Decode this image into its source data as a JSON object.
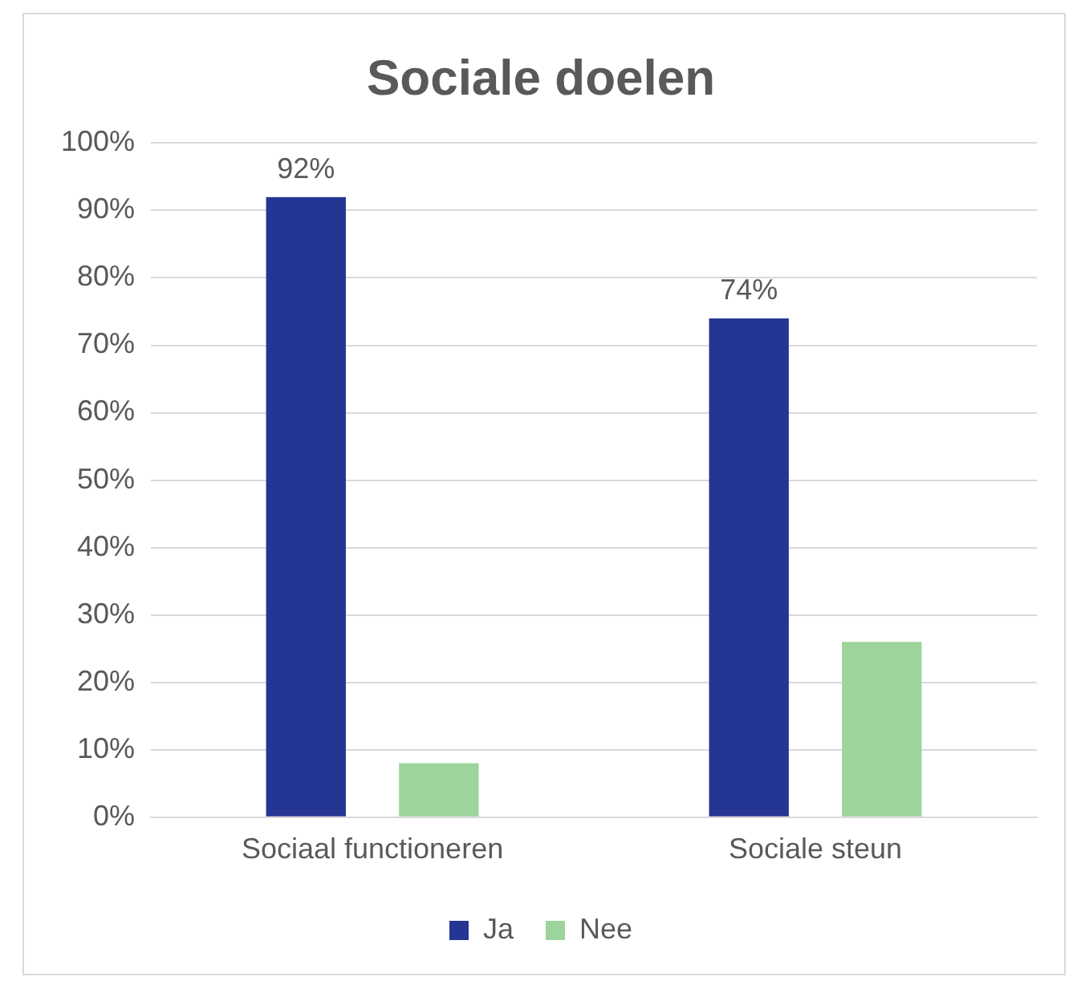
{
  "chart_data": {
    "type": "bar",
    "title": "Sociale doelen",
    "categories": [
      "Sociaal functioneren",
      "Sociale steun"
    ],
    "series": [
      {
        "name": "Ja",
        "color": "#253593",
        "values": [
          92,
          74
        ],
        "value_labels": [
          "92%",
          "74%"
        ]
      },
      {
        "name": "Nee",
        "color": "#9dd49b",
        "values": [
          8,
          26
        ]
      }
    ],
    "ylim": [
      0,
      100
    ],
    "yticks": [
      {
        "value": 0,
        "label": "0%"
      },
      {
        "value": 10,
        "label": "10%"
      },
      {
        "value": 20,
        "label": "20%"
      },
      {
        "value": 30,
        "label": "30%"
      },
      {
        "value": 40,
        "label": "40%"
      },
      {
        "value": 50,
        "label": "50%"
      },
      {
        "value": 60,
        "label": "60%"
      },
      {
        "value": 70,
        "label": "70%"
      },
      {
        "value": 80,
        "label": "80%"
      },
      {
        "value": 90,
        "label": "90%"
      },
      {
        "value": 100,
        "label": "100%"
      }
    ],
    "grid": "y",
    "legend": "bottom"
  }
}
